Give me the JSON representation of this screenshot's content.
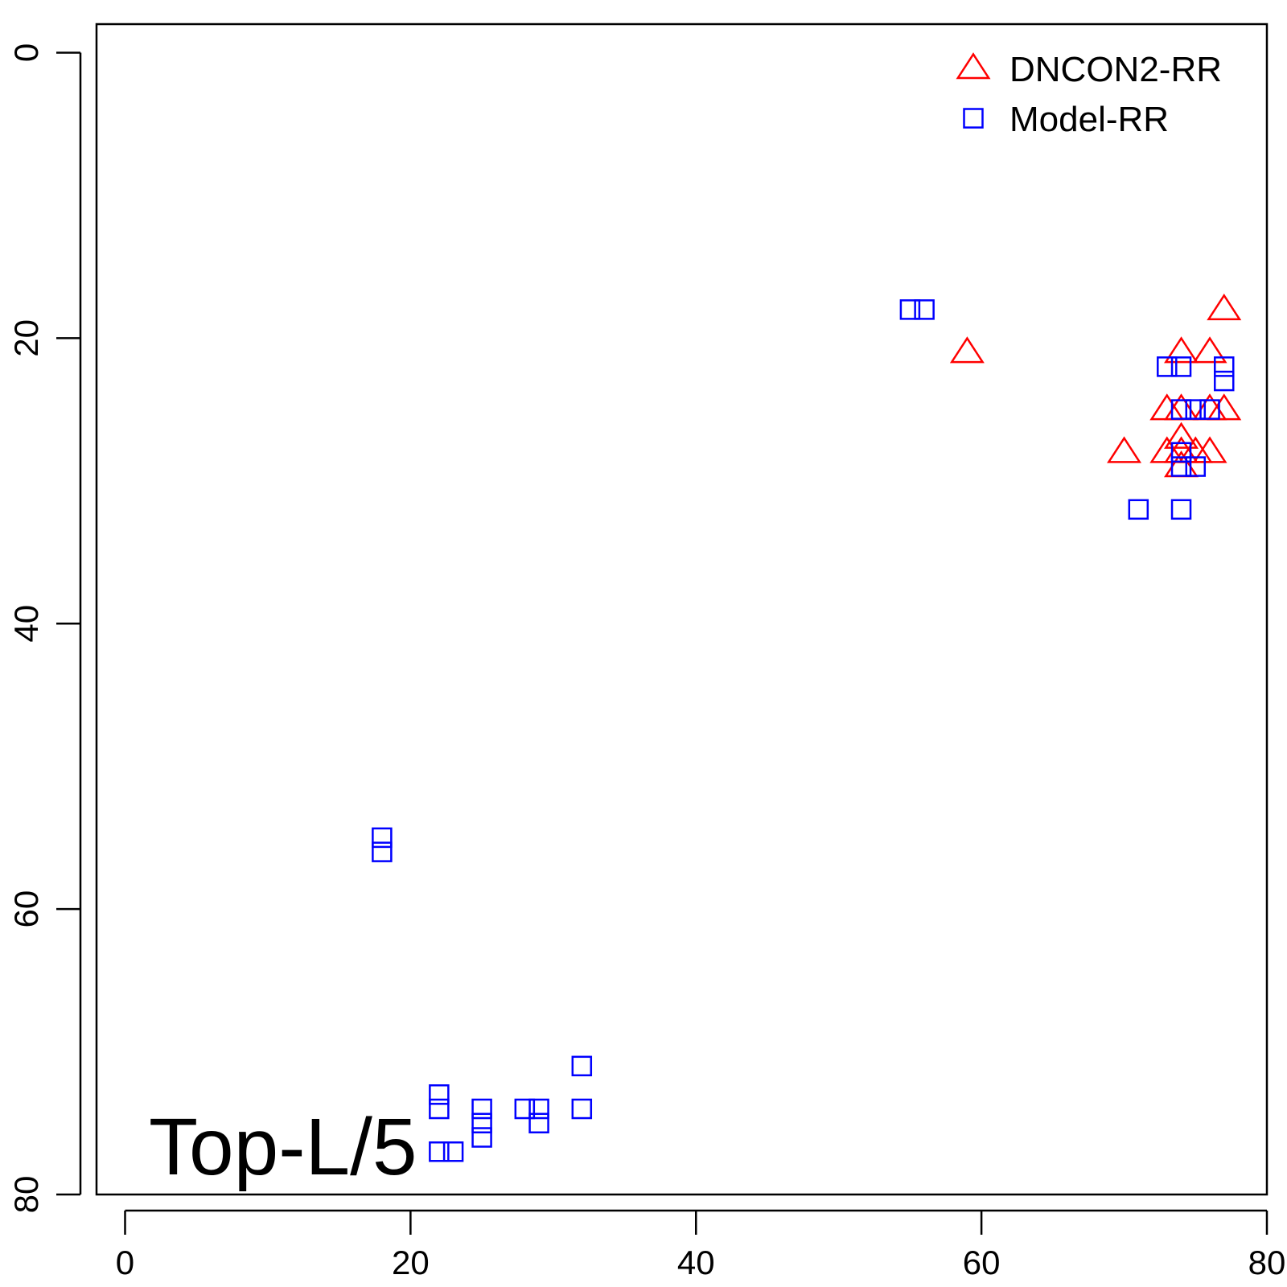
{
  "chart_data": {
    "type": "scatter",
    "title": "",
    "xlabel": "",
    "ylabel": "",
    "xlim": [
      -2,
      80
    ],
    "ylim": [
      80,
      -2
    ],
    "y_reversed": true,
    "x_ticks": [
      0,
      20,
      40,
      60,
      80
    ],
    "y_ticks": [
      0,
      20,
      40,
      60,
      80
    ],
    "grid": false,
    "legend_position": "top-right",
    "annotation": "Top-L/5",
    "series": [
      {
        "name": "DNCON2-RR",
        "marker": "triangle",
        "color": "#ff0000",
        "points": [
          [
            77,
            18
          ],
          [
            59,
            21
          ],
          [
            74,
            21
          ],
          [
            76,
            21
          ],
          [
            73,
            25
          ],
          [
            74,
            25
          ],
          [
            76,
            25
          ],
          [
            77,
            25
          ],
          [
            74,
            27
          ],
          [
            70,
            28
          ],
          [
            73,
            28
          ],
          [
            74,
            28
          ],
          [
            75,
            28
          ],
          [
            76,
            28
          ],
          [
            74,
            29
          ]
        ]
      },
      {
        "name": "Model-RR",
        "marker": "square",
        "color": "#0000ff",
        "points": [
          [
            55,
            18
          ],
          [
            56,
            18
          ],
          [
            73,
            22
          ],
          [
            74,
            22
          ],
          [
            77,
            22
          ],
          [
            77,
            23
          ],
          [
            74,
            25
          ],
          [
            75,
            25
          ],
          [
            76,
            25
          ],
          [
            74,
            28
          ],
          [
            74,
            29
          ],
          [
            75,
            29
          ],
          [
            71,
            32
          ],
          [
            74,
            32
          ],
          [
            18,
            55
          ],
          [
            18,
            56
          ],
          [
            32,
            71
          ],
          [
            22,
            73
          ],
          [
            22,
            74
          ],
          [
            25,
            74
          ],
          [
            28,
            74
          ],
          [
            29,
            74
          ],
          [
            32,
            74
          ],
          [
            25,
            75
          ],
          [
            29,
            75
          ],
          [
            25,
            76
          ],
          [
            22,
            77
          ],
          [
            23,
            77
          ]
        ]
      }
    ]
  }
}
